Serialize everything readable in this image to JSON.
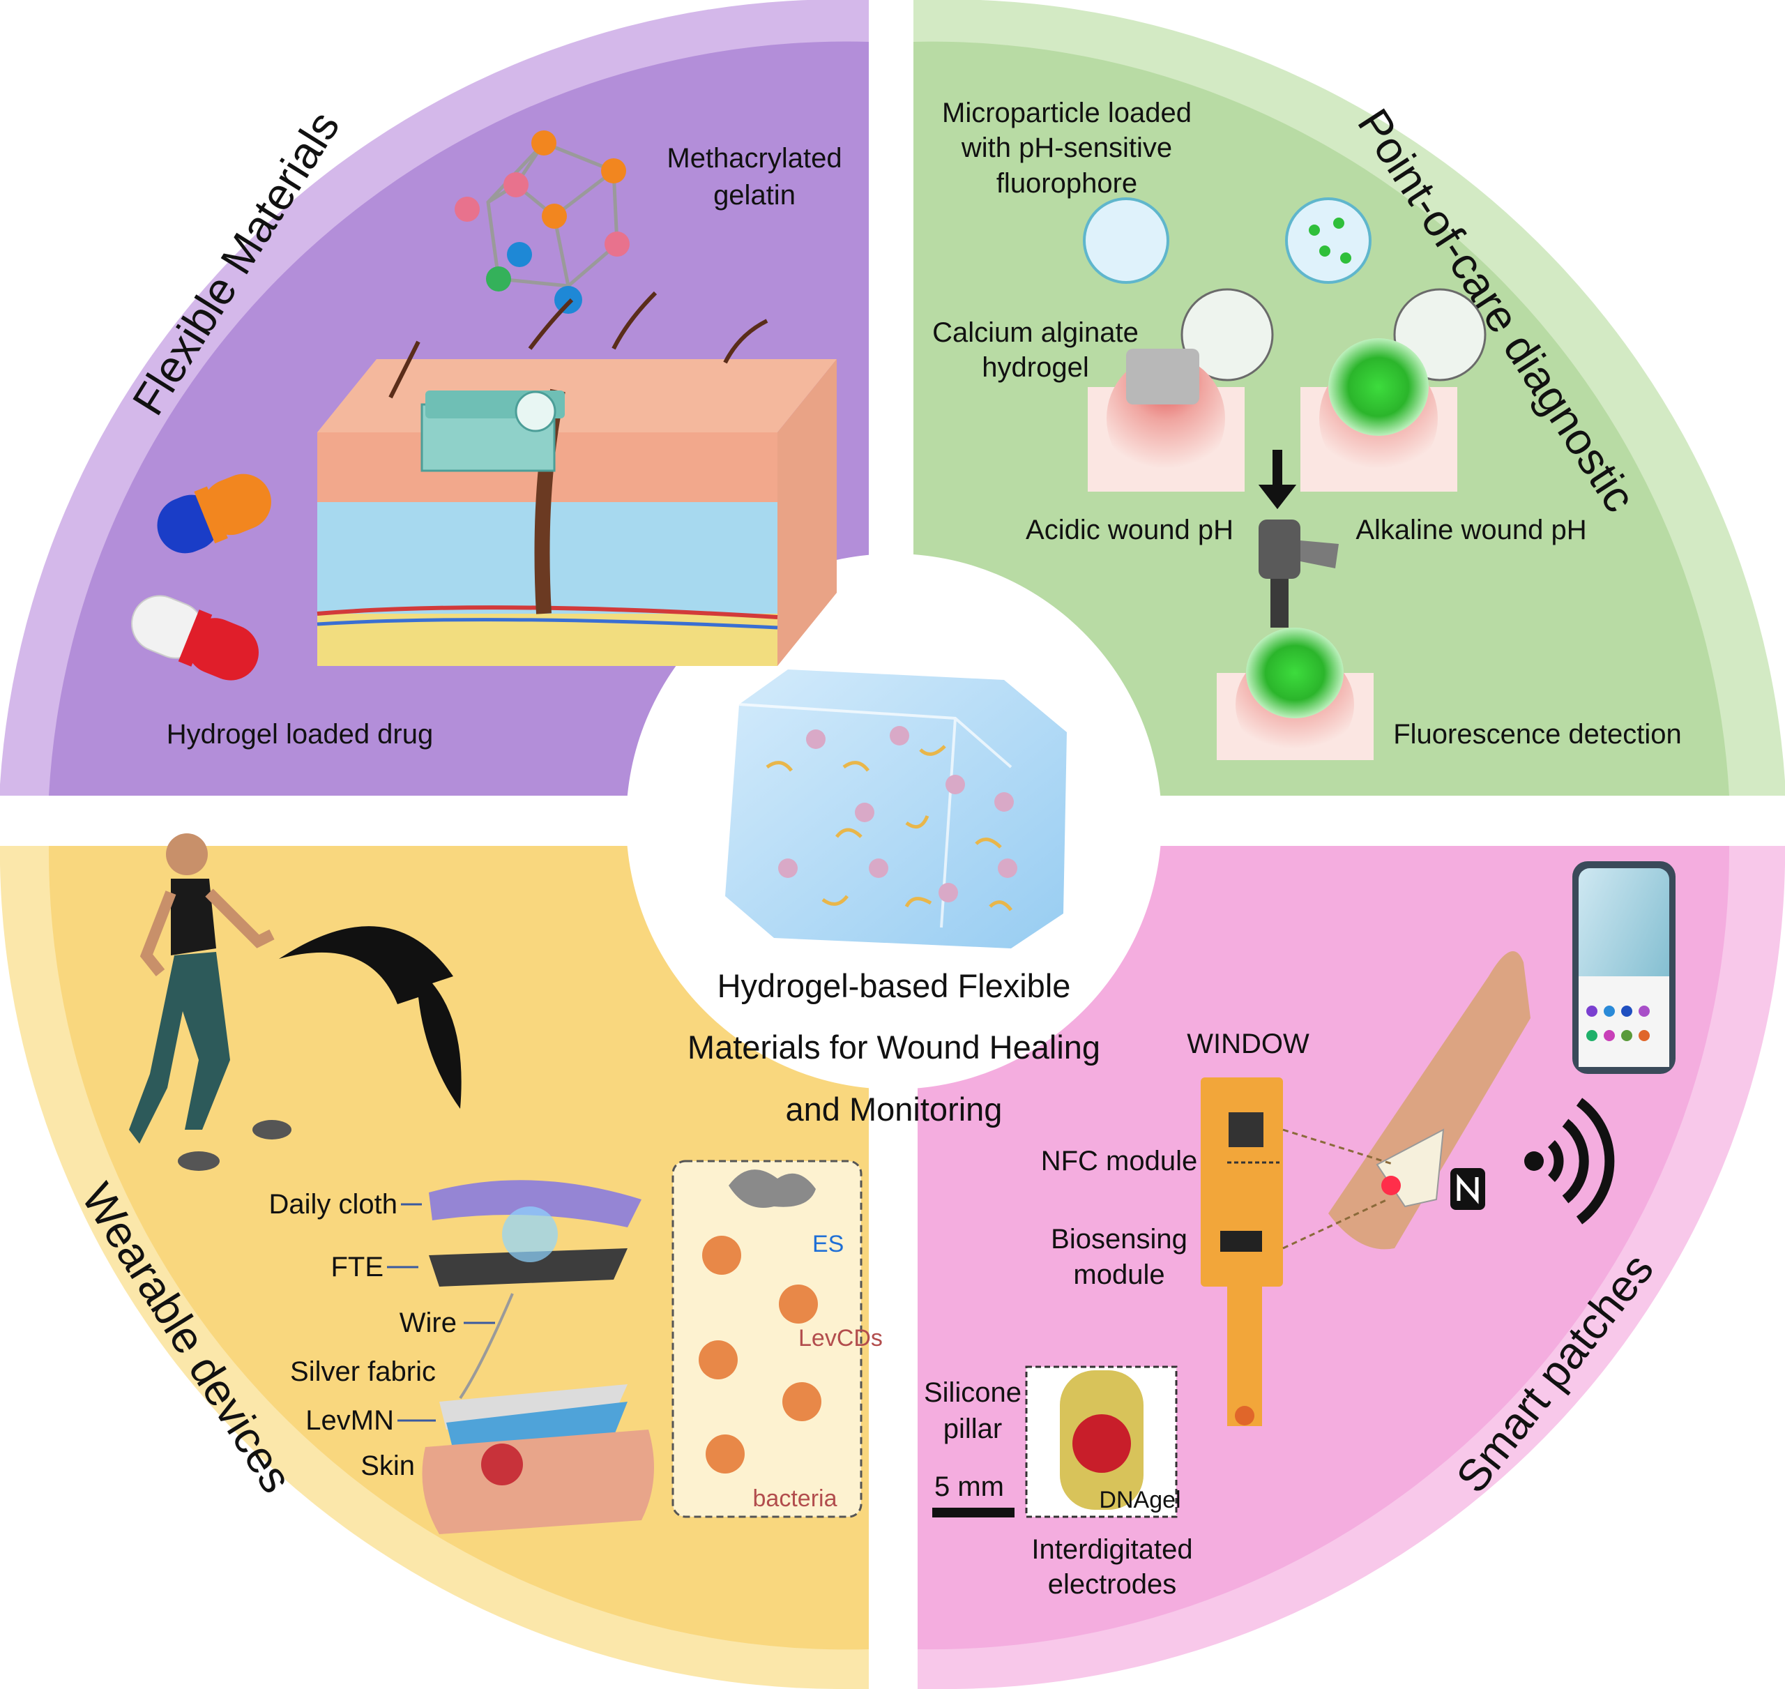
{
  "colors": {
    "purple": "#b38ed9",
    "purple_light": "#d4b8ea",
    "green": "#b8dba4",
    "green_light": "#d3eac4",
    "yellow": "#f9d77e",
    "yellow_light": "#fbe7aa",
    "pink": "#f4addf",
    "pink_light": "#f8c8ea",
    "center": "#ffffff"
  },
  "center": {
    "title_lines": [
      "Hydrogel-based Flexible",
      "Materials for Wound Healing",
      "and Monitoring"
    ]
  },
  "flexible_materials": {
    "title": "Flexible Materials",
    "methacrylated_gelatin": [
      "Methacrylated",
      "gelatin"
    ],
    "hydrogel_loaded_drug": "Hydrogel loaded drug"
  },
  "point_of_care": {
    "title": "Point-of-care diagnostic",
    "microparticle": [
      "Microparticle loaded",
      "with pH-sensitive",
      "fluorophore"
    ],
    "calcium_alginate": [
      "Calcium alginate",
      "hydrogel"
    ],
    "acidic": "Acidic wound pH",
    "alkaline": "Alkaline wound pH",
    "fluorescence": "Fluorescence detection"
  },
  "wearable_devices": {
    "title": "Wearable devices",
    "layers": [
      "Daily cloth",
      "FTE",
      "Wire",
      "Silver fabric",
      "LevMN",
      "Skin"
    ],
    "inset": {
      "es": "ES",
      "levcds": "LevCDs",
      "bacteria": "bacteria"
    }
  },
  "smart_patches": {
    "title": "Smart patches",
    "window": "WINDOW",
    "nfc": "NFC module",
    "biosensing": [
      "Biosensing",
      "module"
    ],
    "silicone": [
      "Silicone",
      "pillar"
    ],
    "scale": "5 mm",
    "dnagel": "DNAgel",
    "interdigitated": [
      "Interdigitated",
      "electrodes"
    ]
  }
}
